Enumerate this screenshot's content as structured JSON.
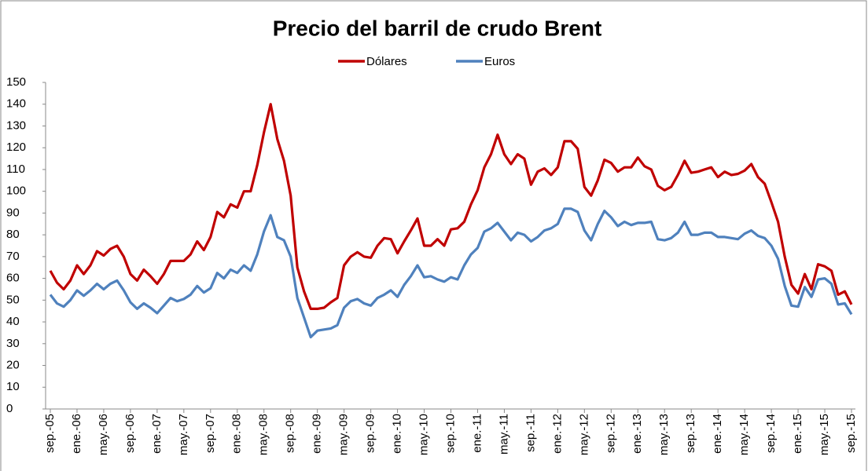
{
  "chart_data": {
    "type": "line",
    "title": "Precio del barril de crudo Brent",
    "categories": [
      "sep.-05",
      null,
      null,
      null,
      "ene.-06",
      null,
      null,
      null,
      "may.-06",
      null,
      null,
      null,
      "sep.-06",
      null,
      null,
      null,
      "ene.-07",
      null,
      null,
      null,
      "may.-07",
      null,
      null,
      null,
      "sep.-07",
      null,
      null,
      null,
      "ene.-08",
      null,
      null,
      null,
      "may.-08",
      null,
      null,
      null,
      "sep.-08",
      null,
      null,
      null,
      "ene.-09",
      null,
      null,
      null,
      "may.-09",
      null,
      null,
      null,
      "sep.-09",
      null,
      null,
      null,
      "ene.-10",
      null,
      null,
      null,
      "may.-10",
      null,
      null,
      null,
      "sep.-10",
      null,
      null,
      null,
      "ene.-11",
      null,
      null,
      null,
      "may.-11",
      null,
      null,
      null,
      "sep.-11",
      null,
      null,
      null,
      "ene.-12",
      null,
      null,
      null,
      "may.-12",
      null,
      null,
      null,
      "sep.-12",
      null,
      null,
      null,
      "ene.-13",
      null,
      null,
      null,
      "may.-13",
      null,
      null,
      null,
      "sep.-13",
      null,
      null,
      null,
      "ene.-14",
      null,
      null,
      null,
      "may.-14",
      null,
      null,
      null,
      "sep.-14",
      null,
      null,
      null,
      "ene.-15",
      null,
      null,
      null,
      "may.-15",
      null,
      null,
      null,
      "sep.-15"
    ],
    "series": [
      {
        "name": "Dólares",
        "color": "#c00000",
        "values": [
          63.5,
          58,
          55,
          59,
          66,
          62,
          66,
          72.5,
          70.5,
          73.5,
          75,
          70,
          62,
          59,
          64,
          61,
          57.5,
          62,
          68,
          68,
          68,
          71,
          77,
          73,
          79,
          90.5,
          88,
          94,
          92.5,
          100,
          100,
          112,
          127,
          140,
          124,
          114,
          98,
          65,
          54,
          46,
          46,
          46.5,
          49,
          51,
          66,
          70,
          72,
          70,
          69.5,
          75,
          78.5,
          78,
          71.5,
          77,
          82,
          87.5,
          75,
          75,
          78,
          75,
          82.5,
          83,
          86,
          94,
          100.5,
          111,
          117,
          126,
          117,
          112.5,
          117,
          115,
          103,
          109,
          110.5,
          107.5,
          111,
          123,
          123,
          119.5,
          102,
          98,
          105,
          114.5,
          113,
          109,
          111,
          111,
          115.5,
          111.5,
          110,
          102.5,
          100.5,
          102,
          107.5,
          114,
          108.5,
          109,
          110,
          111,
          106.5,
          109,
          107.5,
          108,
          109.5,
          112.5,
          106.5,
          103.5,
          95,
          86,
          70,
          57,
          53,
          62,
          55,
          66.5,
          65.5,
          63.5,
          52.5,
          54,
          48
        ]
      },
      {
        "name": "Euros",
        "color": "#4f81bd",
        "values": [
          52.5,
          48.5,
          47,
          50,
          54.5,
          52,
          54.5,
          57.5,
          55,
          57.5,
          59,
          54.5,
          49,
          46,
          48.5,
          46.5,
          44,
          47.5,
          51,
          49.5,
          50.5,
          52.5,
          56.5,
          53.5,
          55.5,
          62.5,
          60,
          64,
          62.5,
          66,
          63.5,
          71,
          81.5,
          89,
          79,
          77.5,
          70,
          51,
          42,
          33,
          36,
          36.5,
          37,
          38.5,
          46.5,
          49.5,
          50.5,
          48.5,
          47.5,
          51,
          52.5,
          54.5,
          51.5,
          57,
          61,
          66,
          60.5,
          61,
          59.5,
          58.5,
          60.5,
          59.5,
          66,
          71,
          74,
          81.5,
          83,
          85.5,
          81.5,
          77.5,
          81,
          80,
          77,
          79,
          82,
          83,
          85,
          92,
          92,
          90.5,
          82,
          77.5,
          85,
          91,
          88,
          84,
          86,
          84.5,
          85.5,
          85.5,
          86,
          78,
          77.5,
          78.5,
          81,
          86,
          80,
          80,
          81,
          81,
          79,
          79,
          78.5,
          78,
          80.5,
          82,
          79.5,
          78.5,
          75,
          69,
          56.5,
          47.5,
          47,
          56,
          51.5,
          59.5,
          60,
          57.5,
          48,
          48.5,
          43.5
        ]
      }
    ],
    "ylim": [
      0,
      150
    ],
    "yticks": [
      0,
      10,
      20,
      30,
      40,
      50,
      60,
      70,
      80,
      90,
      100,
      110,
      120,
      130,
      140,
      150
    ],
    "legend": "top"
  }
}
